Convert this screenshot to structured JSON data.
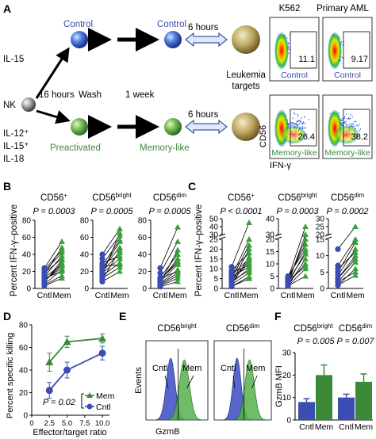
{
  "panel_letters": {
    "a": "A",
    "b": "B",
    "c": "C",
    "d": "D",
    "e": "E",
    "f": "F"
  },
  "panel_a": {
    "il15": "IL-15",
    "nk": "NK",
    "il12_line": "IL-12⁺",
    "il15_line": "IL-15⁺",
    "il18_line": "IL-18",
    "control": "Control",
    "control_after": "Control",
    "preactivated": "Preactivated",
    "memory_like": "Memory-like",
    "hours16": "16 hours",
    "wash": "Wash",
    "week": "1 week",
    "six_hours_top": "6 hours",
    "six_hours_bottom": "6 hours",
    "leukemia1": "Leukemia",
    "leukemia2": "targets",
    "k562": "K562",
    "aml": "Primary AML",
    "cd56": "CD56",
    "ifn": "IFN-γ",
    "flow": [
      {
        "pct": "11.1",
        "label": "Control"
      },
      {
        "pct": "9.17",
        "label": "Control"
      },
      {
        "pct": "26.4",
        "label": "Memory-like"
      },
      {
        "pct": "38.2",
        "label": "Memory-like"
      }
    ]
  },
  "panel_b": {
    "ylabel": "Percent IFN-γ–positive",
    "subpanels": [
      {
        "title_main": "CD56",
        "title_sup": "+",
        "p": "P = 0.0003"
      },
      {
        "title_main": "CD56",
        "title_sup": "bright",
        "p": "P = 0.0005"
      },
      {
        "title_main": "CD56",
        "title_sup": "dim",
        "p": "P = 0.0005"
      }
    ],
    "xcats": [
      "Cntl",
      "Mem"
    ]
  },
  "panel_c": {
    "ylabel": "Percent IFN-γ–positive",
    "subpanels": [
      {
        "title_main": "CD56",
        "title_sup": "+",
        "p": "P < 0.0001"
      },
      {
        "title_main": "CD56",
        "title_sup": "bright",
        "p": "P = 0.0003"
      },
      {
        "title_main": "CD56",
        "title_sup": "dim",
        "p": "P = 0.0002"
      }
    ],
    "xcats": [
      "Cntl",
      "Mem"
    ]
  },
  "panel_d": {
    "ylabel": "Percent specific killing",
    "xlabel": "Effector/target ratio",
    "p": "P = 0.02",
    "legend": [
      "Mem",
      "Cntl"
    ]
  },
  "panel_e": {
    "titles": [
      {
        "main": "CD56",
        "sup": "bright"
      },
      {
        "main": "CD56",
        "sup": "dim"
      }
    ],
    "cntl": "Cntl",
    "mem": "Mem",
    "ylabel": "Events",
    "xlabel": "GzmB"
  },
  "panel_f": {
    "titles": [
      {
        "main": "CD56",
        "sup": "bright"
      },
      {
        "main": "CD56",
        "sup": "dim"
      }
    ],
    "p_values": [
      "P = 0.005",
      "P = 0.007"
    ],
    "ylabel": "GzmB MFI",
    "xcats": [
      "Cntl",
      "Mem",
      "Cntl",
      "Mem"
    ]
  },
  "chart_data": [
    {
      "type": "line",
      "panel": "B",
      "ylabel": "Percent IFN-γ–positive",
      "categories": [
        "Cntl",
        "Mem"
      ],
      "ylim": [
        0,
        80
      ],
      "subplots": [
        {
          "name": "CD56+",
          "yticks": [
            0,
            20,
            40,
            60,
            80
          ],
          "pairs": [
            [
              20,
              42
            ],
            [
              24,
              55
            ],
            [
              5,
              22
            ],
            [
              9,
              27
            ],
            [
              12,
              20
            ],
            [
              14,
              38
            ],
            [
              8,
              30
            ],
            [
              16,
              48
            ],
            [
              4,
              15
            ],
            [
              18,
              35
            ],
            [
              10,
              24
            ],
            [
              7,
              33
            ],
            [
              3,
              12
            ],
            [
              22,
              45
            ],
            [
              13,
              28
            ]
          ]
        },
        {
          "name": "CD56bright",
          "yticks": [
            0,
            20,
            40,
            60,
            80
          ],
          "pairs": [
            [
              40,
              70
            ],
            [
              35,
              62
            ],
            [
              27,
              57
            ],
            [
              24,
              48
            ],
            [
              20,
              42
            ],
            [
              18,
              35
            ],
            [
              15,
              30
            ],
            [
              22,
              55
            ],
            [
              12,
              25
            ],
            [
              8,
              20
            ],
            [
              30,
              38
            ],
            [
              10,
              45
            ],
            [
              16,
              65
            ],
            [
              26,
              28
            ]
          ]
        },
        {
          "name": "CD56dim",
          "yticks": [
            0,
            20,
            40,
            60,
            80
          ],
          "pairs": [
            [
              24,
              72
            ],
            [
              18,
              55
            ],
            [
              13,
              40
            ],
            [
              10,
              32
            ],
            [
              8,
              28
            ],
            [
              6,
              22
            ],
            [
              4,
              15
            ],
            [
              3,
              12
            ],
            [
              9,
              35
            ],
            [
              12,
              20
            ],
            [
              5,
              18
            ],
            [
              7,
              45
            ],
            [
              2,
              8
            ],
            [
              11,
              30
            ]
          ]
        }
      ]
    },
    {
      "type": "line",
      "panel": "C",
      "ylabel": "Percent IFN-γ–positive",
      "categories": [
        "Cntl",
        "Mem"
      ],
      "note": "broken y-axes",
      "subplots": [
        {
          "name": "CD56+",
          "lower_ticks": [
            0,
            5,
            10,
            15,
            20,
            25
          ],
          "upper_ticks": [
            30,
            40,
            50
          ],
          "pairs": [
            [
              11,
              45
            ],
            [
              5,
              22
            ],
            [
              9,
              18
            ],
            [
              4,
              13
            ],
            [
              3,
              10
            ],
            [
              7,
              15
            ],
            [
              6,
              25
            ],
            [
              2,
              8
            ],
            [
              1,
              6
            ],
            [
              8,
              12
            ],
            [
              2,
              16
            ],
            [
              3,
              20
            ],
            [
              1,
              5
            ],
            [
              4,
              9
            ],
            [
              5,
              14
            ],
            [
              6,
              11
            ]
          ]
        },
        {
          "name": "CD56bright",
          "lower_ticks": [
            0,
            5,
            10,
            15,
            20
          ],
          "upper_ticks": [
            30,
            40
          ],
          "pairs": [
            [
              4,
              35
            ],
            [
              3,
              20
            ],
            [
              2,
              15
            ],
            [
              1,
              12
            ],
            [
              2,
              10
            ],
            [
              4,
              18
            ],
            [
              1,
              8
            ],
            [
              3,
              14
            ],
            [
              5,
              16
            ],
            [
              2,
              22
            ],
            [
              1,
              5
            ],
            [
              3,
              9
            ]
          ]
        },
        {
          "name": "CD56dim",
          "lower_ticks": [
            0,
            5,
            10,
            15
          ],
          "upper_ticks": [
            20,
            25,
            30
          ],
          "pairs": [
            [
              12,
              25
            ],
            [
              7,
              15
            ],
            [
              4,
              12
            ],
            [
              3,
              10
            ],
            [
              2,
              8
            ],
            [
              5,
              14
            ],
            [
              1,
              6
            ],
            [
              3,
              9
            ],
            [
              2,
              5
            ],
            [
              6,
              11
            ],
            [
              1,
              4
            ]
          ]
        }
      ]
    },
    {
      "type": "line",
      "panel": "D",
      "xlabel": "Effector/target ratio",
      "ylabel": "Percent specific killing",
      "x": [
        2.5,
        5.0,
        10.0
      ],
      "xlim": [
        0,
        11
      ],
      "xticks": [
        0,
        2.5,
        5.0,
        7.5,
        10.0
      ],
      "ylim": [
        0,
        80
      ],
      "yticks": [
        0,
        20,
        40,
        60,
        80
      ],
      "legend_position": "bottom-right",
      "series": [
        {
          "name": "Mem",
          "color": "#3a8a3a",
          "values": [
            47,
            65,
            68
          ],
          "errors": [
            8,
            5,
            4
          ]
        },
        {
          "name": "Cntl",
          "color": "#3b4db3",
          "values": [
            22,
            40,
            55
          ],
          "errors": [
            7,
            7,
            6
          ]
        }
      ]
    },
    {
      "type": "area",
      "panel": "E",
      "xlabel": "GzmB",
      "ylabel": "Events",
      "subplots": [
        {
          "name": "CD56bright",
          "series": [
            {
              "name": "Cntl",
              "color": "#3b4db3"
            },
            {
              "name": "Mem",
              "color": "#3a8a3a"
            }
          ]
        },
        {
          "name": "CD56dim",
          "series": [
            {
              "name": "Cntl",
              "color": "#3b4db3"
            },
            {
              "name": "Mem",
              "color": "#3a8a3a"
            }
          ]
        }
      ]
    },
    {
      "type": "bar",
      "panel": "F",
      "ylabel": "GzmB MFI",
      "categories": [
        "Cntl",
        "Mem",
        "Cntl",
        "Mem"
      ],
      "groups": [
        "CD56bright",
        "CD56dim"
      ],
      "values": [
        8,
        20,
        10,
        17
      ],
      "errors": [
        1.5,
        4.5,
        1.5,
        3.5
      ],
      "ylim": [
        0,
        30
      ],
      "yticks": [
        0,
        10,
        20,
        30
      ],
      "colors": {
        "Cntl": "#3b4db3",
        "Mem": "#3a8a3a"
      }
    }
  ],
  "colors": {
    "blue": "#3b4db3",
    "green": "#3a8a3a",
    "arrow": "#000000",
    "double_arrow": "#3a5a9a"
  }
}
